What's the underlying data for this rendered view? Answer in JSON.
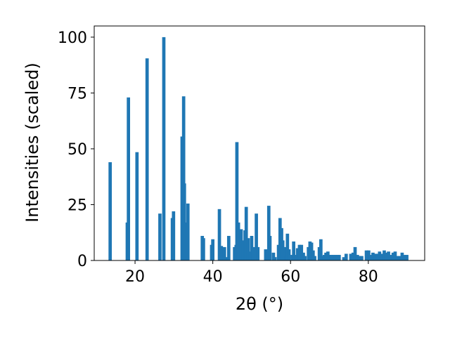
{
  "chart_data": {
    "type": "bar",
    "xlabel": "2θ (°)",
    "ylabel": "Intensities (scaled)",
    "xlim": [
      9.5,
      94.5
    ],
    "ylim": [
      0,
      105
    ],
    "xticks": [
      20,
      40,
      60,
      80
    ],
    "yticks": [
      0,
      25,
      50,
      75,
      100
    ],
    "bar_color": "#1f77b4",
    "grid": false,
    "x": [
      13.6,
      18.0,
      18.3,
      20.5,
      23.1,
      26.4,
      27.4,
      29.6,
      29.9,
      32.1,
      32.5,
      32.7,
      33.0,
      33.6,
      37.3,
      37.6,
      39.7,
      40.0,
      41.7,
      42.2,
      42.6,
      43.0,
      43.3,
      44.1,
      45.6,
      46.0,
      46.2,
      46.6,
      46.9,
      47.3,
      47.8,
      48.3,
      48.6,
      49.1,
      49.7,
      50.0,
      50.4,
      51.2,
      51.6,
      53.6,
      54.4,
      54.7,
      55.6,
      56.0,
      56.9,
      57.3,
      57.7,
      58.0,
      58.4,
      58.8,
      59.2,
      59.6,
      60.4,
      60.8,
      61.3,
      61.8,
      62.3,
      62.8,
      63.3,
      63.7,
      64.6,
      65.0,
      65.4,
      65.8,
      66.2,
      67.4,
      67.8,
      68.2,
      68.7,
      69.1,
      69.6,
      70.0,
      70.5,
      71.0,
      71.5,
      72.0,
      72.5,
      73.7,
      74.3,
      75.5,
      76.1,
      76.6,
      77.2,
      77.7,
      78.3,
      79.5,
      80.1,
      80.6,
      81.2,
      81.8,
      82.3,
      82.9,
      83.5,
      84.1,
      84.6,
      85.2,
      85.8,
      86.4,
      86.9,
      87.5,
      88.1,
      88.7,
      89.3,
      89.9
    ],
    "values": [
      44,
      17,
      73,
      48.5,
      90.5,
      21,
      100,
      19,
      22,
      55.5,
      73.5,
      34.5,
      17,
      25.5,
      11,
      10,
      7,
      9.5,
      23,
      6.5,
      5,
      6,
      1.5,
      11,
      6,
      7,
      53,
      17,
      7.5,
      14,
      9,
      13.5,
      24,
      10,
      4,
      11,
      6,
      21,
      6,
      5,
      24.5,
      11,
      3.5,
      1.5,
      7,
      19,
      14.5,
      9,
      6,
      2,
      12,
      5,
      2.5,
      8.5,
      2.5,
      5.5,
      7,
      7,
      3.5,
      2,
      6,
      8.5,
      8,
      4.5,
      2,
      6,
      9.5,
      2,
      2.5,
      3.5,
      4,
      2.5,
      2.5,
      2.5,
      2.5,
      2.5,
      2.5,
      1.5,
      3,
      3,
      3.5,
      6,
      2.5,
      2,
      2,
      4.5,
      4.5,
      2.5,
      3.5,
      3,
      3,
      4,
      3,
      4.5,
      3.5,
      4,
      2.5,
      3.5,
      4,
      2,
      2,
      3.5,
      2.5,
      2.5
    ]
  }
}
